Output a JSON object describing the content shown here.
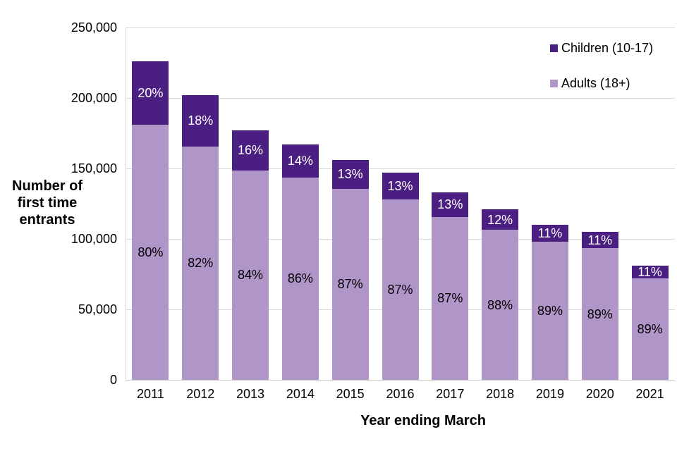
{
  "chart_data": {
    "type": "bar",
    "subtype": "stacked",
    "title": "",
    "xlabel": "Year ending March",
    "ylabel": "Number of\nfirst time\nentrants",
    "ylim": [
      0,
      250000
    ],
    "grid": true,
    "legend_position": "top-right",
    "categories": [
      "2011",
      "2012",
      "2013",
      "2014",
      "2015",
      "2016",
      "2017",
      "2018",
      "2019",
      "2020",
      "2021"
    ],
    "totals": [
      226000,
      202000,
      177000,
      167000,
      156000,
      147000,
      133000,
      121000,
      110000,
      105000,
      81000
    ],
    "series": [
      {
        "name": "Adults (18+)",
        "color": "#b096c8",
        "label_color": "#000000",
        "values": [
          180800,
          165640,
          148680,
          143620,
          135720,
          127890,
          115710,
          106480,
          97900,
          93450,
          72090
        ],
        "labels": [
          "80%",
          "82%",
          "84%",
          "86%",
          "87%",
          "87%",
          "87%",
          "88%",
          "89%",
          "89%",
          "89%"
        ]
      },
      {
        "name": "Children (10-17)",
        "color": "#4b1e82",
        "label_color": "#ffffff",
        "values": [
          45200,
          36360,
          28320,
          23380,
          20280,
          19110,
          17290,
          14520,
          12100,
          11550,
          8910
        ],
        "labels": [
          "20%",
          "18%",
          "16%",
          "14%",
          "13%",
          "13%",
          "13%",
          "12%",
          "11%",
          "11%",
          "11%"
        ]
      }
    ],
    "yticks": [
      {
        "label": "0",
        "value": 0
      },
      {
        "label": "50,000",
        "value": 50000
      },
      {
        "label": "100,000",
        "value": 100000
      },
      {
        "label": "150,000",
        "value": 150000
      },
      {
        "label": "200,000",
        "value": 200000
      },
      {
        "label": "250,000",
        "value": 250000
      }
    ],
    "legend": {
      "items": [
        {
          "label": "Children (10-17)",
          "swatch_color": "#4b1e82",
          "series_index": 1
        },
        {
          "label": "Adults (18+)",
          "swatch_color": "#b096c8",
          "series_index": 0
        }
      ]
    }
  }
}
